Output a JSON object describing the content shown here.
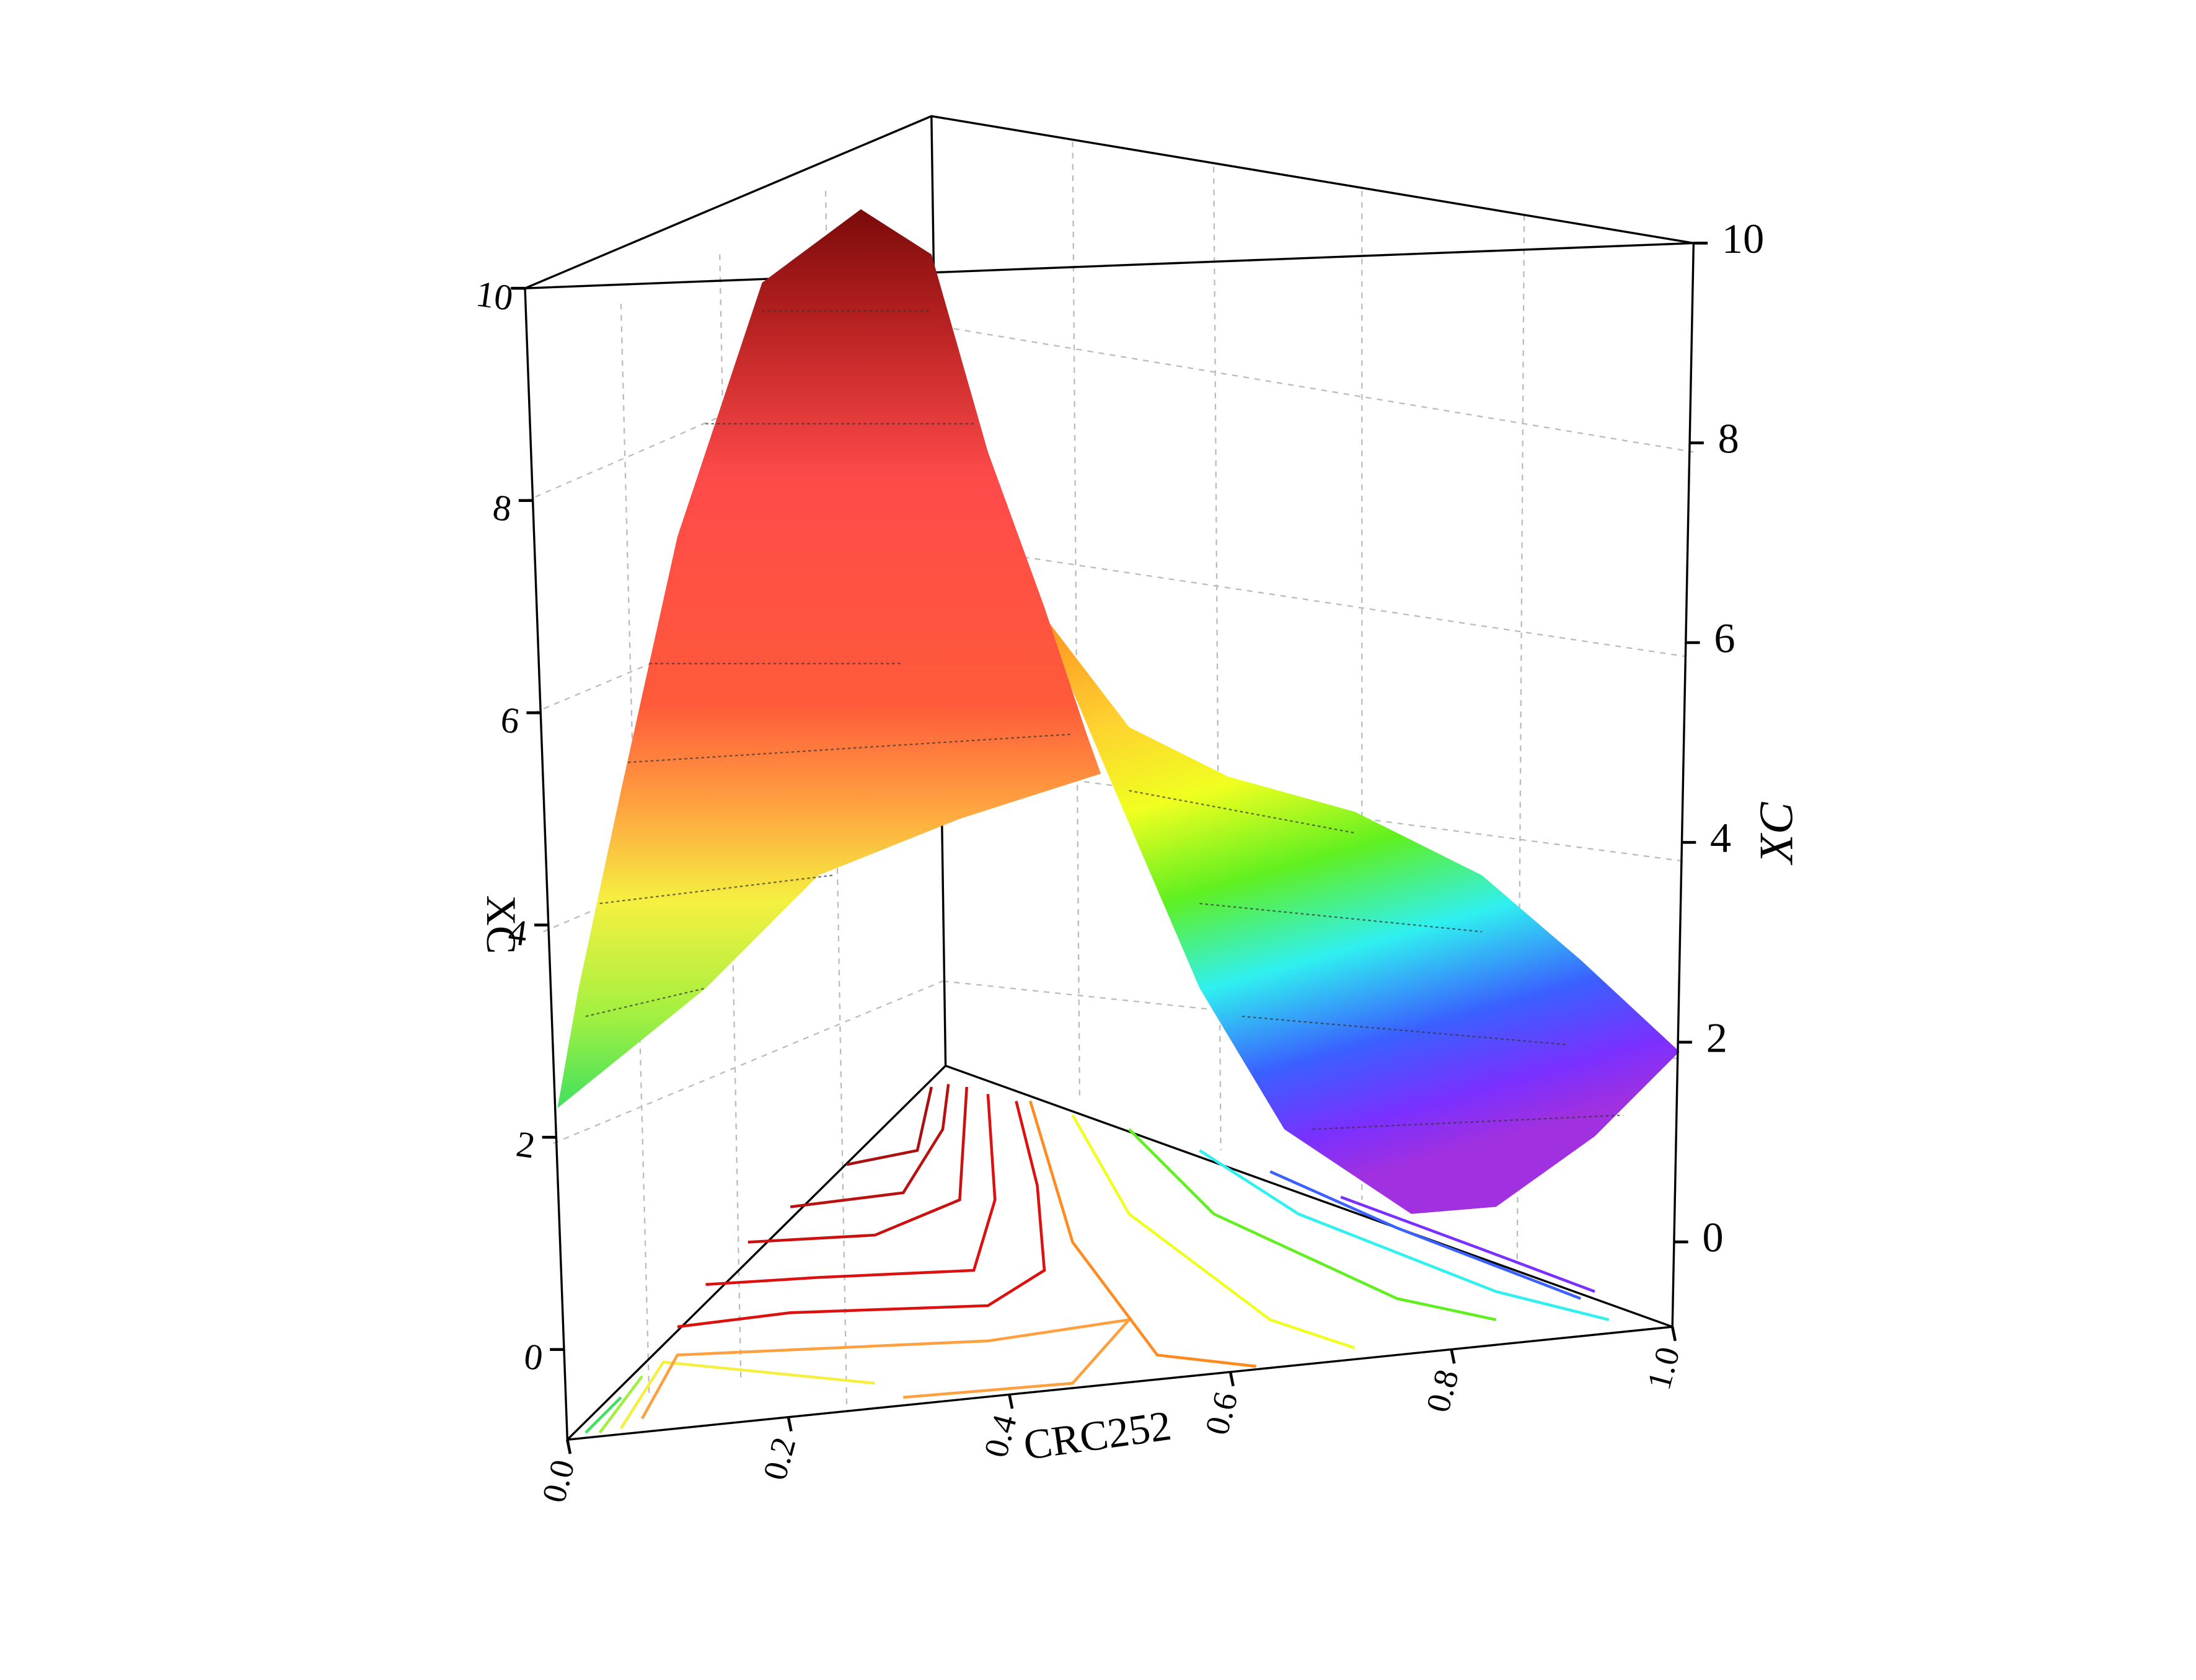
{
  "chart_data": {
    "type": "ternary-surface",
    "z_label_left": "XC",
    "z_label_right": "XC",
    "x_label": "CRC252",
    "zlim": [
      -0.85,
      10
    ],
    "zticks": [
      0,
      2,
      4,
      6,
      8,
      10
    ],
    "xlim": [
      0,
      1
    ],
    "xticks": [
      {
        "value": 0,
        "label": "0.0"
      },
      {
        "value": 0.2,
        "label": "0.2"
      },
      {
        "value": 0.4,
        "label": "0.4"
      },
      {
        "value": 0.6,
        "label": "0.6"
      },
      {
        "value": 0.8,
        "label": "0.8"
      },
      {
        "value": 1,
        "label": "1.0"
      }
    ]
  }
}
